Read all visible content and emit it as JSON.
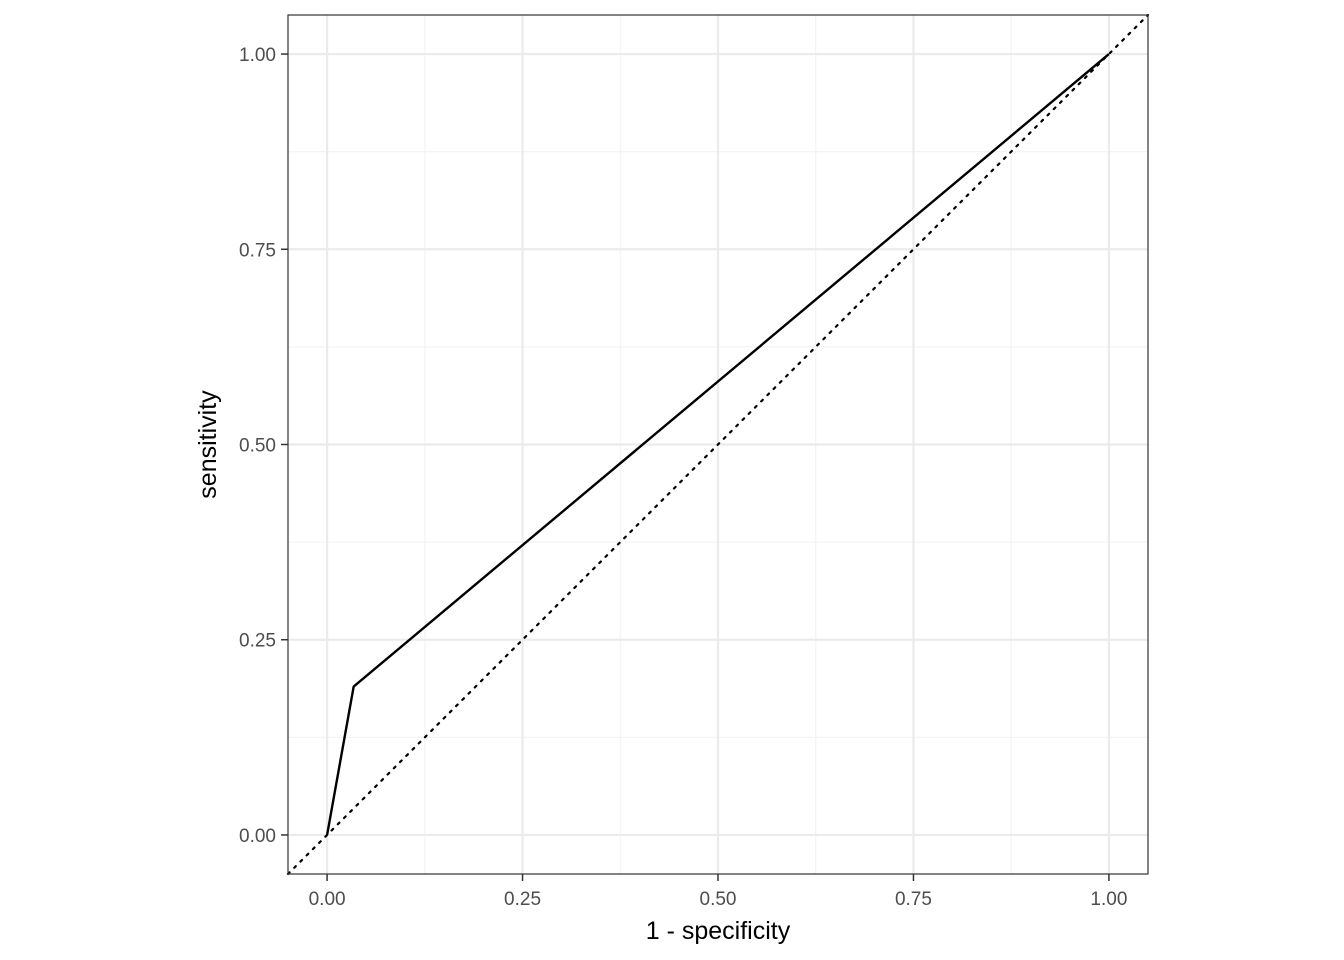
{
  "chart_data": {
    "type": "line",
    "title": "",
    "xlabel": "1 - specificity",
    "ylabel": "sensitivity",
    "xlim": [
      -0.05,
      1.05
    ],
    "ylim": [
      -0.05,
      1.05
    ],
    "x_ticks": [
      {
        "value": 0,
        "label": "0.00"
      },
      {
        "value": 0.25,
        "label": "0.25"
      },
      {
        "value": 0.5,
        "label": "0.50"
      },
      {
        "value": 0.75,
        "label": "0.75"
      },
      {
        "value": 1,
        "label": "1.00"
      }
    ],
    "y_ticks": [
      {
        "value": 0,
        "label": "0.00"
      },
      {
        "value": 0.25,
        "label": "0.25"
      },
      {
        "value": 0.5,
        "label": "0.50"
      },
      {
        "value": 0.75,
        "label": "0.75"
      },
      {
        "value": 1,
        "label": "1.00"
      }
    ],
    "grid": true,
    "series": [
      {
        "x": [
          0,
          0.034,
          1
        ],
        "y": [
          0,
          0.19,
          1
        ],
        "color": "#000000",
        "style": "solid"
      }
    ],
    "reference_line": {
      "x": [
        -0.05,
        1.05
      ],
      "y": [
        -0.05,
        1.05
      ],
      "color": "#000000",
      "style": "dotted"
    },
    "colors": {
      "panel_border": "#333333",
      "grid_major": "#ebebeb",
      "grid_minor": "#f2f2f2",
      "tick_label": "#4d4d4d"
    }
  }
}
